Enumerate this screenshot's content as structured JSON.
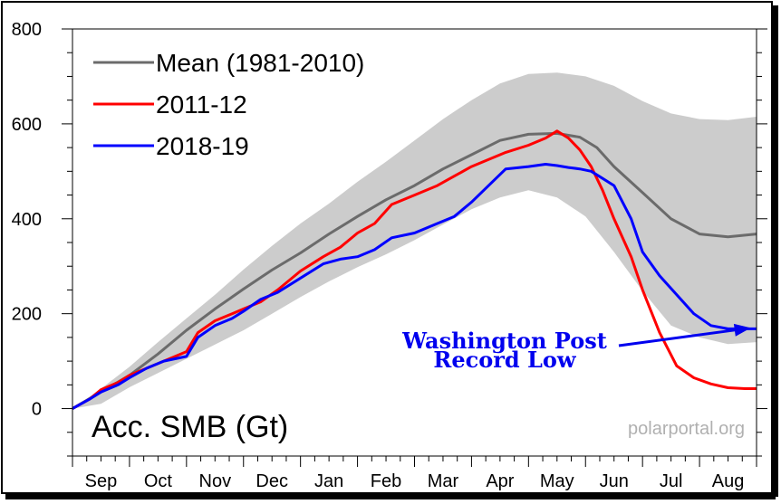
{
  "chart_data": {
    "type": "line",
    "ylabel": "Acc. SMB (Gt)",
    "ylim": [
      -100,
      800
    ],
    "yticks": [
      "800",
      "600",
      "400",
      "200",
      "0"
    ],
    "ytick_values": [
      800,
      600,
      400,
      200,
      0
    ],
    "months": [
      "Sep",
      "Oct",
      "Nov",
      "Dec",
      "Jan",
      "Feb",
      "Mar",
      "Apr",
      "May",
      "Jun",
      "Jul",
      "Aug"
    ],
    "xlim": [
      0,
      12
    ],
    "grid": false,
    "legend_position": "top-left",
    "credit": "polarportal.org",
    "annotation": {
      "lines": [
        "Washington Post",
        "Record Low"
      ],
      "arrow_to": [
        11.9,
        170
      ]
    },
    "band": {
      "color": "#cccccc",
      "x": [
        0,
        0.5,
        1,
        1.5,
        2,
        2.5,
        3,
        3.5,
        4,
        4.5,
        5,
        5.5,
        6,
        6.5,
        7,
        7.5,
        8,
        8.5,
        9,
        9.5,
        10,
        10.5,
        11,
        11.5,
        12
      ],
      "upper": [
        0,
        42,
        88,
        140,
        190,
        240,
        293,
        343,
        390,
        432,
        478,
        520,
        565,
        610,
        650,
        685,
        705,
        708,
        700,
        680,
        648,
        622,
        610,
        608,
        615
      ],
      "lower": [
        0,
        10,
        45,
        75,
        105,
        135,
        165,
        200,
        235,
        268,
        298,
        325,
        355,
        388,
        420,
        445,
        460,
        445,
        405,
        330,
        248,
        175,
        150,
        136,
        140
      ]
    },
    "series": [
      {
        "name": "Mean (1981-2010)",
        "color": "#6b6b6b",
        "x": [
          0,
          0.5,
          1,
          1.5,
          2,
          2.5,
          3,
          3.5,
          4,
          4.5,
          5,
          5.5,
          6,
          6.5,
          7,
          7.5,
          8,
          8.5,
          8.9,
          9.2,
          9.5,
          10,
          10.5,
          11,
          11.5,
          12
        ],
        "y": [
          0,
          35,
          70,
          115,
          165,
          210,
          252,
          292,
          328,
          368,
          405,
          440,
          470,
          505,
          535,
          565,
          578,
          580,
          572,
          550,
          510,
          455,
          400,
          368,
          362,
          368
        ]
      },
      {
        "name": "2011-12",
        "color": "#ff0000",
        "x": [
          0,
          0.3,
          0.5,
          0.8,
          1,
          1.3,
          1.6,
          2,
          2.2,
          2.5,
          2.8,
          3,
          3.3,
          3.6,
          4,
          4.4,
          4.7,
          5,
          5.3,
          5.6,
          6,
          6.4,
          6.7,
          7,
          7.3,
          7.6,
          8,
          8.3,
          8.5,
          8.7,
          8.9,
          9.1,
          9.3,
          9.5,
          9.8,
          10,
          10.3,
          10.6,
          10.9,
          11.2,
          11.5,
          11.8,
          12
        ],
        "y": [
          0,
          20,
          40,
          55,
          70,
          85,
          100,
          120,
          160,
          185,
          200,
          210,
          225,
          250,
          290,
          320,
          340,
          370,
          390,
          430,
          450,
          470,
          490,
          510,
          525,
          540,
          555,
          570,
          585,
          570,
          545,
          510,
          460,
          400,
          320,
          250,
          160,
          90,
          65,
          52,
          44,
          42,
          42
        ]
      },
      {
        "name": "2018-19",
        "color": "#0000ff",
        "x": [
          0,
          0.3,
          0.5,
          0.8,
          1,
          1.3,
          1.6,
          2,
          2.2,
          2.5,
          2.8,
          3,
          3.3,
          3.6,
          4,
          4.4,
          4.7,
          5,
          5.3,
          5.6,
          6,
          6.4,
          6.7,
          7,
          7.3,
          7.6,
          8,
          8.3,
          8.5,
          8.7,
          8.9,
          9.1,
          9.3,
          9.5,
          9.8,
          10,
          10.3,
          10.6,
          10.9,
          11.2,
          11.5,
          11.8,
          12
        ],
        "y": [
          0,
          20,
          35,
          50,
          65,
          85,
          100,
          110,
          150,
          175,
          190,
          205,
          230,
          245,
          275,
          305,
          315,
          320,
          335,
          360,
          370,
          390,
          405,
          435,
          470,
          505,
          510,
          515,
          512,
          508,
          505,
          500,
          485,
          470,
          400,
          330,
          280,
          240,
          200,
          175,
          168,
          168,
          168
        ]
      }
    ]
  }
}
